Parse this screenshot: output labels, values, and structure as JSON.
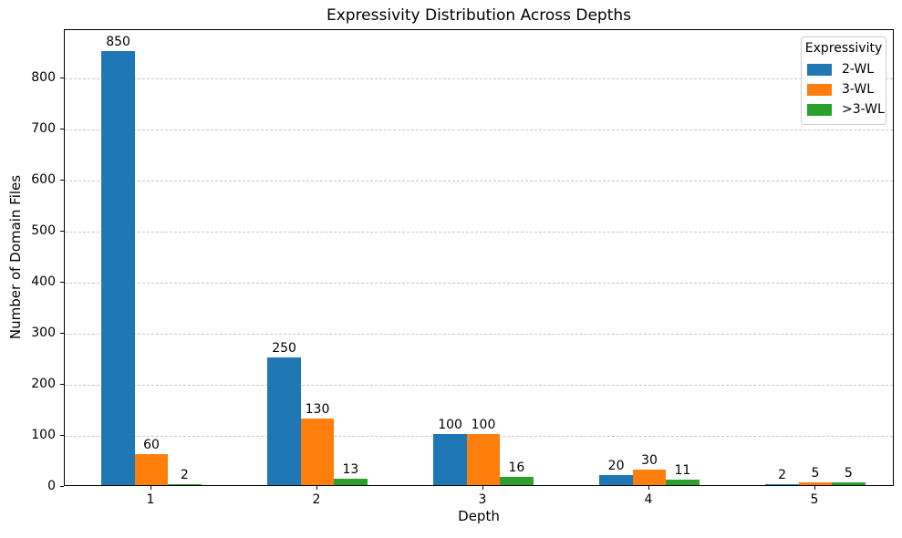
{
  "chart_data": {
    "type": "bar",
    "title": "Expressivity Distribution Across Depths",
    "xlabel": "Depth",
    "ylabel": "Number of Domain Files",
    "categories": [
      "1",
      "2",
      "3",
      "4",
      "5"
    ],
    "series": [
      {
        "name": "2-WL",
        "color": "#1f77b4",
        "values": [
          850,
          250,
          100,
          20,
          2
        ]
      },
      {
        "name": "3-WL",
        "color": "#ff7f0e",
        "values": [
          60,
          130,
          100,
          30,
          5
        ]
      },
      {
        "name": ">3-WL",
        "color": "#2ca02c",
        "values": [
          2,
          13,
          16,
          11,
          5
        ]
      }
    ],
    "ylim": [
      0,
      895
    ],
    "yticks": [
      0,
      100,
      200,
      300,
      400,
      500,
      600,
      700,
      800
    ],
    "bar_labels": true,
    "grid": {
      "axis": "y",
      "style": "dashed",
      "color": "#c7c7c7"
    },
    "legend": {
      "title": "Expressivity",
      "position": "upper right"
    }
  }
}
